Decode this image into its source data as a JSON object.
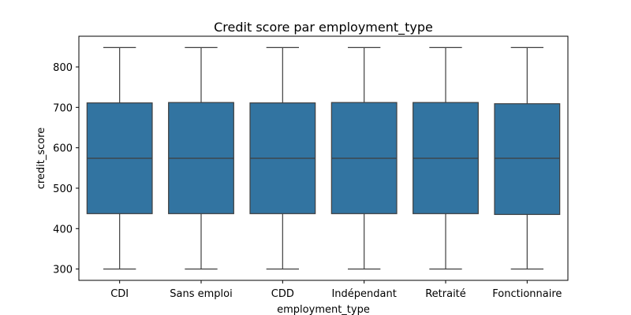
{
  "chart_data": {
    "type": "box",
    "title": "Credit score par employment_type",
    "xlabel": "employment_type",
    "ylabel": "credit_score",
    "ylim": [
      272,
      876
    ],
    "yticks": [
      300,
      400,
      500,
      600,
      700,
      800
    ],
    "grid": false,
    "legend": "none",
    "box_color": "#3274a1",
    "line_color": "#3f3f3f",
    "categories": [
      "CDI",
      "Sans emploi",
      "CDD",
      "Indépendant",
      "Retraité",
      "Fonctionnaire"
    ],
    "boxes": [
      {
        "category": "CDI",
        "whislo": 300,
        "q1": 437,
        "median": 574,
        "q3": 711,
        "whishi": 848
      },
      {
        "category": "Sans emploi",
        "whislo": 300,
        "q1": 437,
        "median": 574,
        "q3": 712,
        "whishi": 848
      },
      {
        "category": "CDD",
        "whislo": 300,
        "q1": 437,
        "median": 574,
        "q3": 711,
        "whishi": 848
      },
      {
        "category": "Indépendant",
        "whislo": 300,
        "q1": 437,
        "median": 574,
        "q3": 712,
        "whishi": 848
      },
      {
        "category": "Retraité",
        "whislo": 300,
        "q1": 437,
        "median": 574,
        "q3": 712,
        "whishi": 848
      },
      {
        "category": "Fonctionnaire",
        "whislo": 300,
        "q1": 435,
        "median": 574,
        "q3": 709,
        "whishi": 848
      }
    ]
  }
}
